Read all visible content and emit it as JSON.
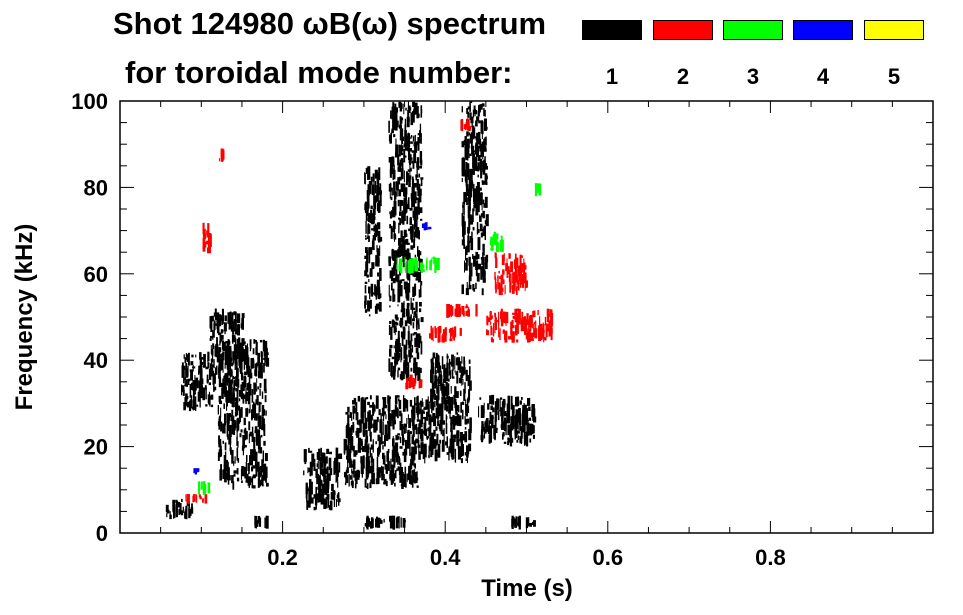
{
  "title_line1": "Shot 124980 ωB(ω) spectrum",
  "title_line2": "for toroidal mode number:",
  "legend": [
    {
      "label": "1",
      "color": "#000000"
    },
    {
      "label": "2",
      "color": "#ff0000"
    },
    {
      "label": "3",
      "color": "#00ff00"
    },
    {
      "label": "4",
      "color": "#0000ff"
    },
    {
      "label": "5",
      "color": "#ffff00"
    }
  ],
  "chart_data": {
    "type": "heatmap",
    "title": "Shot 124980 ωB(ω) spectrum",
    "xlabel": "Time (s)",
    "ylabel": "Frequency (kHz)",
    "xlim": [
      0.0,
      1.0
    ],
    "ylim": [
      0,
      100
    ],
    "xticks": [
      0.2,
      0.4,
      0.6,
      0.8
    ],
    "xtick_labels": [
      "0.2",
      "0.4",
      "0.6",
      "0.8"
    ],
    "yticks": [
      0,
      20,
      40,
      60,
      80,
      100
    ],
    "ytick_labels": [
      "0",
      "20",
      "40",
      "60",
      "80",
      "100"
    ],
    "grid": false,
    "series": [
      {
        "name": "n=1",
        "color": "#000000",
        "regions": [
          {
            "t": [
              0.075,
              0.115
            ],
            "f": [
              28,
              42
            ]
          },
          {
            "t": [
              0.11,
              0.15
            ],
            "f": [
              36,
              52
            ]
          },
          {
            "t": [
              0.055,
              0.09
            ],
            "f": [
              3,
              8
            ]
          },
          {
            "t": [
              0.12,
              0.18
            ],
            "f": [
              10,
              45
            ]
          },
          {
            "t": [
              0.225,
              0.27
            ],
            "f": [
              5,
              20
            ]
          },
          {
            "t": [
              0.275,
              0.365
            ],
            "f": [
              10,
              32
            ]
          },
          {
            "t": [
              0.365,
              0.43
            ],
            "f": [
              16,
              32
            ]
          },
          {
            "t": [
              0.38,
              0.43
            ],
            "f": [
              30,
              42
            ]
          },
          {
            "t": [
              0.44,
              0.51
            ],
            "f": [
              20,
              32
            ]
          },
          {
            "t": [
              0.33,
              0.37
            ],
            "f": [
              35,
              100
            ]
          },
          {
            "t": [
              0.42,
              0.45
            ],
            "f": [
              55,
              100
            ]
          },
          {
            "t": [
              0.3,
              0.32
            ],
            "f": [
              50,
              85
            ]
          },
          {
            "t": [
              0.3,
              0.35
            ],
            "f": [
              1,
              4
            ]
          },
          {
            "t": [
              0.48,
              0.51
            ],
            "f": [
              1,
              4
            ]
          },
          {
            "t": [
              0.165,
              0.18
            ],
            "f": [
              1,
              4
            ]
          }
        ]
      },
      {
        "name": "n=2",
        "color": "#ff0000",
        "regions": [
          {
            "t": [
              0.1,
              0.11
            ],
            "f": [
              63,
              72
            ]
          },
          {
            "t": [
              0.12,
              0.13
            ],
            "f": [
              86,
              89
            ]
          },
          {
            "t": [
              0.35,
              0.37
            ],
            "f": [
              33,
              37
            ]
          },
          {
            "t": [
              0.38,
              0.42
            ],
            "f": [
              44,
              48
            ]
          },
          {
            "t": [
              0.4,
              0.44
            ],
            "f": [
              50,
              53
            ]
          },
          {
            "t": [
              0.45,
              0.53
            ],
            "f": [
              44,
              52
            ]
          },
          {
            "t": [
              0.46,
              0.5
            ],
            "f": [
              55,
              65
            ]
          },
          {
            "t": [
              0.415,
              0.43
            ],
            "f": [
              93,
              96
            ]
          },
          {
            "t": [
              0.08,
              0.11
            ],
            "f": [
              7,
              9
            ]
          }
        ]
      },
      {
        "name": "n=3",
        "color": "#00ff00",
        "regions": [
          {
            "t": [
              0.455,
              0.47
            ],
            "f": [
              65,
              70
            ]
          },
          {
            "t": [
              0.34,
              0.39
            ],
            "f": [
              60,
              64
            ]
          },
          {
            "t": [
              0.095,
              0.11
            ],
            "f": [
              9,
              12
            ]
          },
          {
            "t": [
              0.51,
              0.52
            ],
            "f": [
              78,
              81
            ]
          }
        ]
      },
      {
        "name": "n=4",
        "color": "#0000ff",
        "regions": [
          {
            "t": [
              0.37,
              0.38
            ],
            "f": [
              70,
              72
            ]
          },
          {
            "t": [
              0.09,
              0.095
            ],
            "f": [
              14,
              15
            ]
          }
        ]
      },
      {
        "name": "n=5",
        "color": "#ffff00",
        "regions": []
      }
    ]
  }
}
